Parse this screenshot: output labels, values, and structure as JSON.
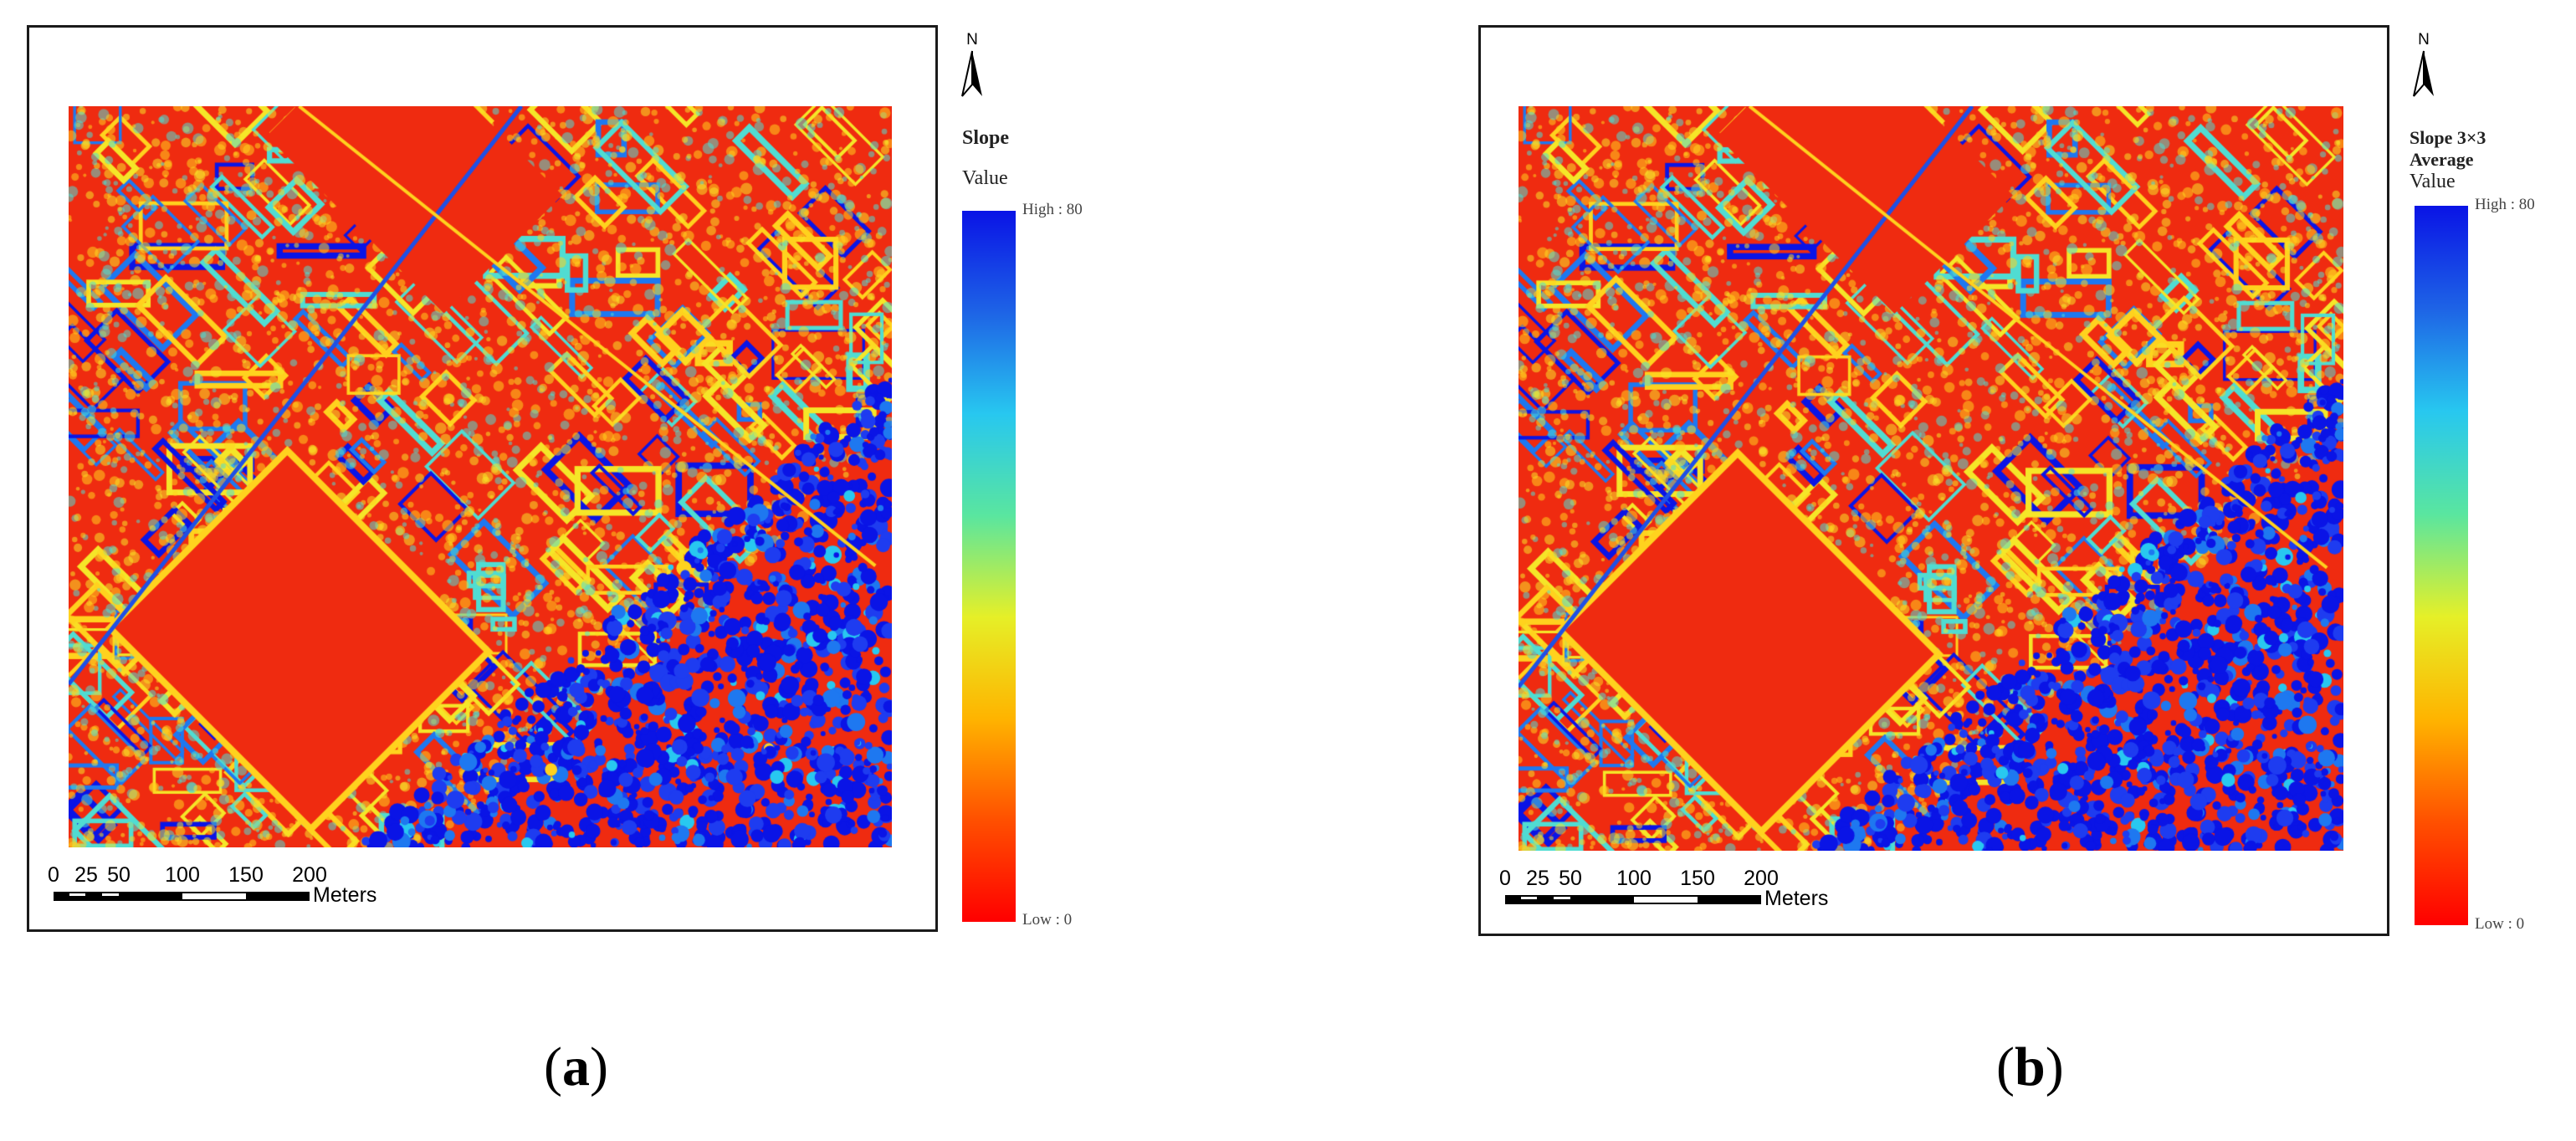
{
  "panels": [
    {
      "id": "a",
      "caption_letter": "a",
      "legend": {
        "title_lines": [
          "Slope"
        ],
        "subtitle": "Value",
        "high_label": "High : 80",
        "low_label": "Low : 0"
      },
      "scale": {
        "ticks": [
          "0",
          "25",
          "50",
          "100",
          "150",
          "200"
        ],
        "unit": "Meters"
      },
      "north_label": "N",
      "blue_intensity": 0.85
    },
    {
      "id": "b",
      "caption_letter": "b",
      "legend": {
        "title_lines": [
          "Slope 3×3",
          "Average"
        ],
        "subtitle": "Value",
        "high_label": "High : 80",
        "low_label": "Low : 0"
      },
      "scale": {
        "ticks": [
          "0",
          "25",
          "50",
          "100",
          "150",
          "200"
        ],
        "unit": "Meters"
      },
      "north_label": "N",
      "blue_intensity": 1.0
    }
  ],
  "colors": {
    "ramp": [
      "#0a14e6",
      "#1e64e6",
      "#28c8f0",
      "#5ae6a0",
      "#e6f028",
      "#ffb400",
      "#ff5000",
      "#ff0000"
    ],
    "base_red": "#ef2b10",
    "frame": "#1a1a1a"
  }
}
